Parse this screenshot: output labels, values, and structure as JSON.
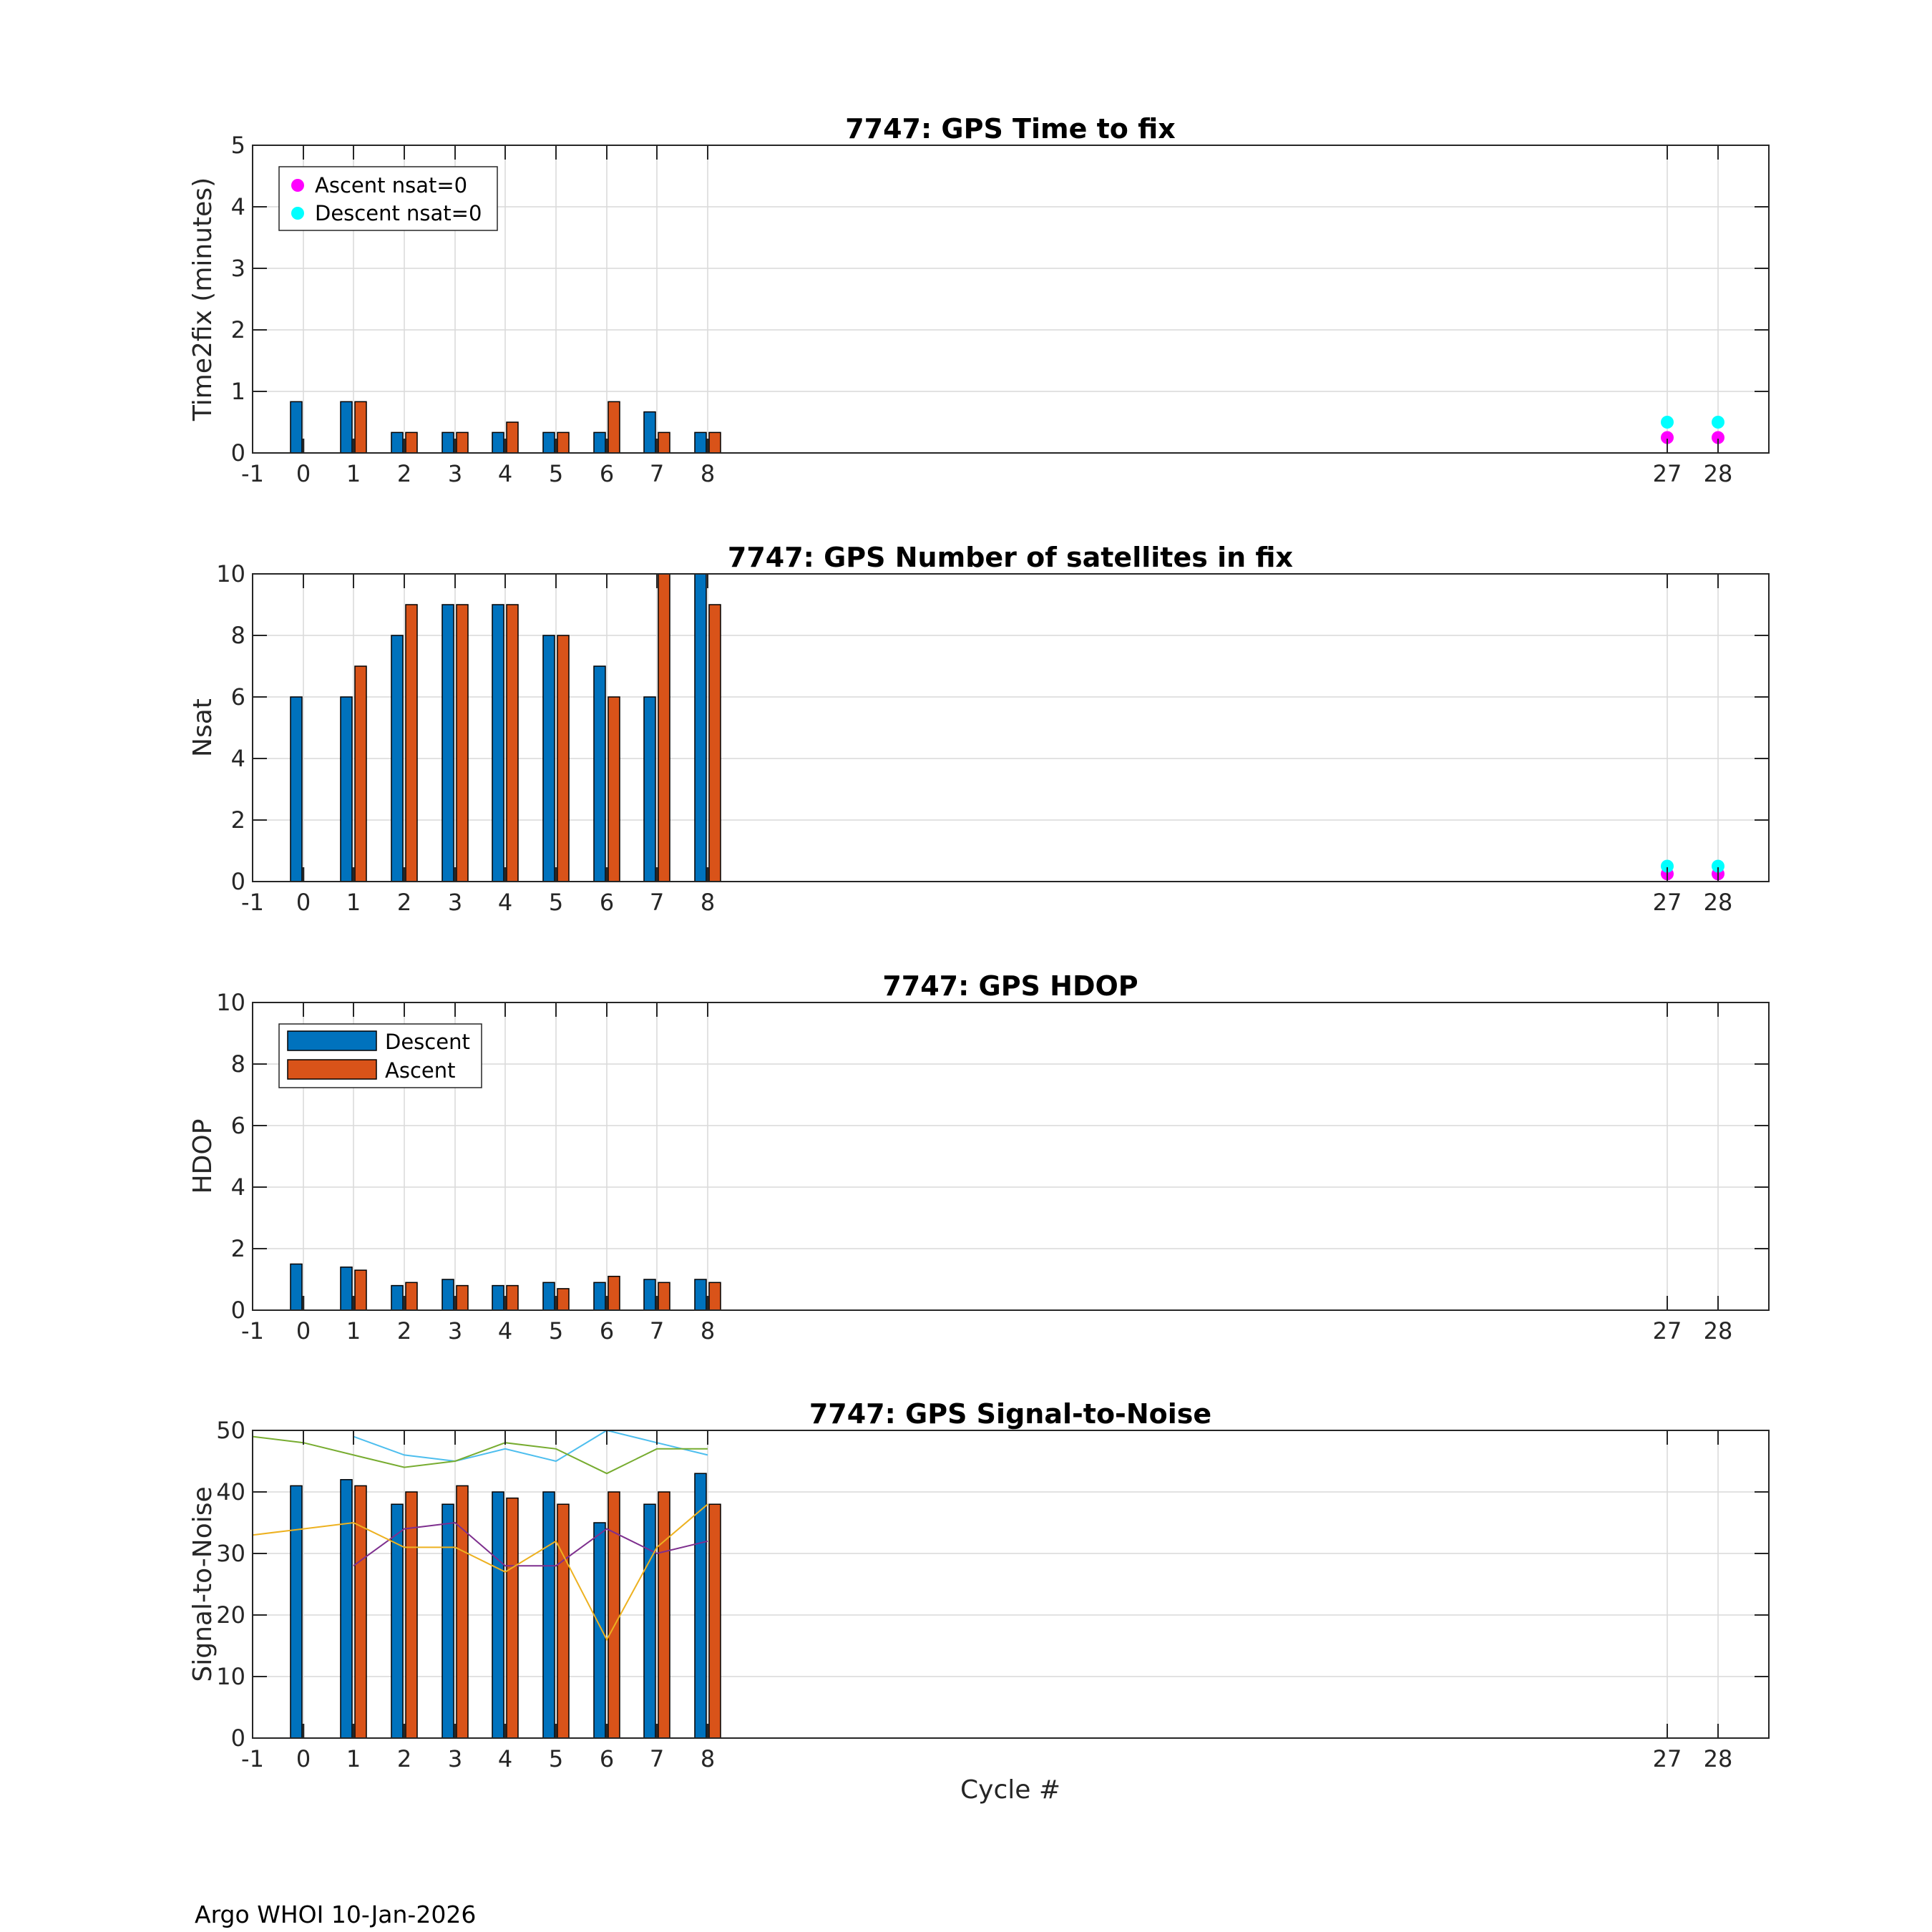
{
  "footer": "Argo WHOI 10-Jan-2026",
  "x_axis_label": "Cycle #",
  "x_ticks": [
    "-1",
    "0",
    "1",
    "2",
    "3",
    "4",
    "5",
    "6",
    "7",
    "8",
    "27",
    "28"
  ],
  "legend_bars": {
    "descent": "Descent",
    "ascent": "Ascent"
  },
  "legend_nsat0": {
    "ascent": "Ascent nsat=0",
    "descent": "Descent nsat=0"
  },
  "colors": {
    "descent": "#0072BD",
    "ascent": "#D95319",
    "ascent_nsat0": "#FF00FF",
    "descent_nsat0": "#00FFFF",
    "sn_lines": [
      "#4DBEEE",
      "#77AC30",
      "#7E2F8E",
      "#EDB120"
    ]
  },
  "chart_data": [
    {
      "id": "time2fix",
      "type": "bar",
      "title": "7747: GPS Time to fix",
      "xlabel": "",
      "ylabel": "Time2fix (minutes)",
      "ylim": [
        0,
        5
      ],
      "yticks": [
        "0",
        "1",
        "2",
        "3",
        "4",
        "5"
      ],
      "grid": true,
      "legend": "nsat0",
      "legend_position": "top-left",
      "categories": [
        0,
        1,
        2,
        3,
        4,
        5,
        6,
        7,
        8
      ],
      "series": [
        {
          "name": "Descent",
          "values": [
            0.833,
            0.833,
            0.333,
            0.333,
            0.333,
            0.333,
            0.333,
            0.667,
            0.333
          ]
        },
        {
          "name": "Ascent",
          "values": [
            null,
            0.833,
            0.333,
            0.333,
            0.5,
            0.333,
            0.833,
            0.333,
            0.333
          ]
        }
      ],
      "nsat0_markers": {
        "descent": {
          "x": [
            27,
            28
          ],
          "y": [
            0.5,
            0.5
          ]
        },
        "ascent": {
          "x": [
            27,
            28
          ],
          "y": [
            0.25,
            0.25
          ]
        }
      }
    },
    {
      "id": "nsat",
      "type": "bar",
      "title": "7747: GPS Number of satellites in fix",
      "xlabel": "",
      "ylabel": "Nsat",
      "ylim": [
        0,
        10
      ],
      "yticks": [
        "0",
        "2",
        "4",
        "6",
        "8",
        "10"
      ],
      "grid": true,
      "legend": "none",
      "categories": [
        0,
        1,
        2,
        3,
        4,
        5,
        6,
        7,
        8
      ],
      "series": [
        {
          "name": "Descent",
          "values": [
            6,
            6,
            8,
            9,
            9,
            8,
            7,
            6,
            10
          ]
        },
        {
          "name": "Ascent",
          "values": [
            null,
            7,
            9,
            9,
            9,
            8,
            6,
            10,
            9
          ]
        }
      ],
      "nsat0_markers": {
        "descent": {
          "x": [
            27,
            28
          ],
          "y": [
            0.5,
            0.5
          ]
        },
        "ascent": {
          "x": [
            27,
            28
          ],
          "y": [
            0.25,
            0.25
          ]
        }
      }
    },
    {
      "id": "hdop",
      "type": "bar",
      "title": "7747: GPS HDOP",
      "xlabel": "",
      "ylabel": "HDOP",
      "ylim": [
        0,
        10
      ],
      "yticks": [
        "0",
        "2",
        "4",
        "6",
        "8",
        "10"
      ],
      "grid": true,
      "legend": "bars",
      "legend_position": "top-left",
      "categories": [
        0,
        1,
        2,
        3,
        4,
        5,
        6,
        7,
        8
      ],
      "series": [
        {
          "name": "Descent",
          "values": [
            1.5,
            1.4,
            0.8,
            1.0,
            0.8,
            0.9,
            0.9,
            1.0,
            1.0
          ]
        },
        {
          "name": "Ascent",
          "values": [
            null,
            1.3,
            0.9,
            0.8,
            0.8,
            0.7,
            1.1,
            0.9,
            0.9
          ]
        }
      ]
    },
    {
      "id": "snr",
      "type": "bar",
      "title": "7747: GPS Signal-to-Noise",
      "xlabel": "Cycle #",
      "ylabel": "Signal-to-Noise",
      "ylim": [
        0,
        50
      ],
      "yticks": [
        "0",
        "10",
        "20",
        "30",
        "40",
        "50"
      ],
      "grid": true,
      "legend": "none",
      "categories": [
        0,
        1,
        2,
        3,
        4,
        5,
        6,
        7,
        8
      ],
      "series": [
        {
          "name": "Descent",
          "values": [
            41,
            42,
            38,
            38,
            40,
            40,
            35,
            38,
            43
          ]
        },
        {
          "name": "Ascent",
          "values": [
            null,
            41,
            40,
            41,
            39,
            38,
            40,
            40,
            38
          ]
        }
      ],
      "lines": [
        {
          "x": [
            1,
            2,
            3,
            4,
            5,
            6,
            7,
            8
          ],
          "values": [
            49,
            46,
            45,
            47,
            45,
            50,
            48,
            46
          ]
        },
        {
          "x": [
            -1,
            0,
            1,
            2,
            3,
            4,
            5,
            6,
            7,
            8
          ],
          "values": [
            49,
            48,
            46,
            44,
            45,
            48,
            47,
            43,
            47,
            47
          ]
        },
        {
          "x": [
            1,
            2,
            3,
            4,
            5,
            6,
            7,
            8
          ],
          "values": [
            28,
            34,
            35,
            28,
            28,
            34,
            30,
            32
          ]
        },
        {
          "x": [
            -1,
            0,
            1,
            2,
            3,
            4,
            5,
            6,
            7,
            8
          ],
          "values": [
            33,
            34,
            35,
            31,
            31,
            27,
            32,
            16,
            31,
            38
          ]
        }
      ]
    }
  ]
}
